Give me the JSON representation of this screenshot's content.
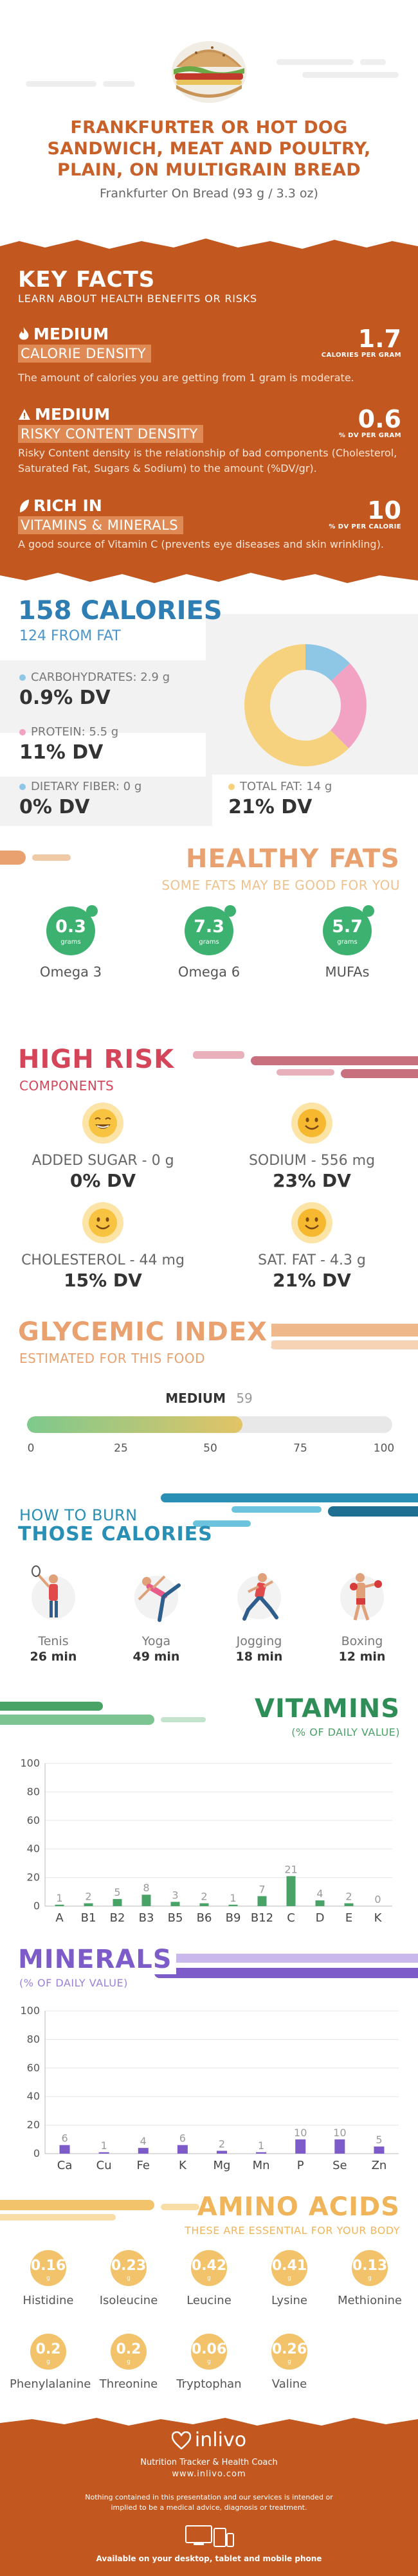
{
  "header": {
    "title_lines": [
      "FRANKFURTER OR HOT DOG",
      "SANDWICH, MEAT AND POULTRY,",
      "PLAIN, ON MULTIGRAIN BREAD"
    ],
    "subtitle": "Frankfurter On Bread (93 g / 3.3 oz)"
  },
  "key_facts": {
    "title": "KEY FACTS",
    "subtitle": "LEARN ABOUT HEALTH BENEFITS OR RISKS",
    "items": [
      {
        "level": "MEDIUM",
        "category": "CALORIE DENSITY",
        "desc": "The amount of calories you are getting from 1 gram is moderate.",
        "value": "1.7",
        "unit": "CALORIES PER GRAM",
        "icon": "flame-icon"
      },
      {
        "level": "MEDIUM",
        "category": "RISKY CONTENT DENSITY",
        "desc": "Risky Content density is the relationship of bad components (Cholesterol, Saturated Fat, Sugars & Sodium) to the amount (%DV/gr).",
        "value": "0.6",
        "unit": "% DV PER GRAM",
        "icon": "warning-icon"
      },
      {
        "level": "RICH  IN",
        "category": "VITAMINS & MINERALS",
        "desc": "A good source of Vitamin C (prevents eye diseases and skin wrinkling).",
        "value": "10",
        "unit": "% DV PER CALORIE",
        "icon": "leaf-icon"
      }
    ]
  },
  "calories": {
    "title": "158 CALORIES",
    "from_fat": "124 FROM FAT",
    "macros": [
      {
        "label": "CARBOHYDRATES: 2.9 g",
        "dv": "0.9% DV",
        "color": "#8ec6e6"
      },
      {
        "label": "PROTEIN: 5.5 g",
        "dv": "11% DV",
        "color": "#f2a3c4"
      },
      {
        "label": "DIETARY FIBER: 0 g",
        "dv": "0% DV",
        "color": "#8ec6e6"
      },
      {
        "label": "TOTAL FAT: 14 g",
        "dv": "21% DV",
        "color": "#f7d27e"
      }
    ],
    "donut": [
      {
        "name": "carbohydrates",
        "value": 2.9,
        "color": "#8ec6e6"
      },
      {
        "name": "protein",
        "value": 5.5,
        "color": "#f2a3c4"
      },
      {
        "name": "fat",
        "value": 14,
        "color": "#f7d27e"
      }
    ]
  },
  "healthy_fats": {
    "title": "HEALTHY FATS",
    "subtitle": "SOME FATS MAY BE GOOD FOR YOU",
    "items": [
      {
        "value": "0.3",
        "unit": "grams",
        "name": "Omega 3"
      },
      {
        "value": "7.3",
        "unit": "grams",
        "name": "Omega 6"
      },
      {
        "value": "5.7",
        "unit": "grams",
        "name": "MUFAs"
      }
    ]
  },
  "high_risk": {
    "title": "HIGH RISK",
    "subtitle": "COMPONENTS",
    "items": [
      {
        "label": "ADDED SUGAR - 0 g",
        "dv": "0% DV",
        "face": "laughing"
      },
      {
        "label": "SODIUM - 556 mg",
        "dv": "23% DV",
        "face": "smile"
      },
      {
        "label": "CHOLESTEROL - 44 mg",
        "dv": "15% DV",
        "face": "smile"
      },
      {
        "label": "SAT. FAT - 4.3 g",
        "dv": "21% DV",
        "face": "smile"
      }
    ]
  },
  "glycemic": {
    "title": "GLYCEMIC INDEX",
    "subtitle": "ESTIMATED FOR THIS FOOD",
    "level": "MEDIUM",
    "value": "59",
    "fill_fraction": 0.59,
    "ticks": [
      "0",
      "25",
      "50",
      "75",
      "100"
    ]
  },
  "burn": {
    "title_line1": "HOW TO BURN",
    "title_line2": "THOSE CALORIES",
    "activities": [
      {
        "name": "Tenis",
        "minutes": "26 min"
      },
      {
        "name": "Yoga",
        "minutes": "49 min"
      },
      {
        "name": "Jogging",
        "minutes": "18 min"
      },
      {
        "name": "Boxing",
        "minutes": "12 min"
      }
    ]
  },
  "vitamins": {
    "title": "VITAMINS",
    "subtitle": "(% OF DAILY VALUE)"
  },
  "minerals": {
    "title": "MINERALS",
    "subtitle": "(% OF DAILY VALUE)"
  },
  "chart_data": [
    {
      "type": "bar",
      "categories": [
        "A",
        "B1",
        "B2",
        "B3",
        "B5",
        "B6",
        "B9",
        "B12",
        "C",
        "D",
        "E",
        "K"
      ],
      "values": [
        1,
        2,
        5,
        8,
        3,
        2,
        1,
        7,
        21,
        4,
        2,
        0
      ],
      "title": "VITAMINS",
      "ylabel": "(% OF DAILY VALUE)",
      "ylim": [
        0,
        100
      ],
      "yticks": [
        0,
        20,
        40,
        60,
        80,
        100
      ],
      "color": "#4aa366"
    },
    {
      "type": "bar",
      "categories": [
        "Ca",
        "Cu",
        "Fe",
        "K",
        "Mg",
        "Mn",
        "P",
        "Se",
        "Zn"
      ],
      "values": [
        6,
        1,
        4,
        6,
        2,
        1,
        10,
        10,
        5
      ],
      "title": "MINERALS",
      "ylabel": "(% OF DAILY VALUE)",
      "ylim": [
        0,
        100
      ],
      "yticks": [
        0,
        20,
        40,
        60,
        80,
        100
      ],
      "color": "#7d5cc9"
    }
  ],
  "amino": {
    "title": "AMINO ACIDS",
    "subtitle": "THESE ARE ESSENTIAL FOR YOUR BODY",
    "items": [
      {
        "value": "0.16",
        "unit": "g",
        "name": "Histidine"
      },
      {
        "value": "0.23",
        "unit": "g",
        "name": "Isoleucine"
      },
      {
        "value": "0.42",
        "unit": "g",
        "name": "Leucine"
      },
      {
        "value": "0.41",
        "unit": "g",
        "name": "Lysine"
      },
      {
        "value": "0.13",
        "unit": "g",
        "name": "Methionine"
      },
      {
        "value": "0.2",
        "unit": "g",
        "name": "Phenylalanine"
      },
      {
        "value": "0.2",
        "unit": "g",
        "name": "Threonine"
      },
      {
        "value": "0.06",
        "unit": "g",
        "name": "Tryptophan"
      },
      {
        "value": "0.26",
        "unit": "g",
        "name": "Valine"
      }
    ]
  },
  "footer": {
    "brand": "inlivo",
    "tagline": "Nutrition Tracker & Health Coach",
    "url": "www.inlivo.com",
    "disclaimer": "Nothing contained in this presentation and our services is intended or implied to be a medical advice, diagnosis or treatment.",
    "available": "Available on your desktop, tablet and mobile phone"
  }
}
